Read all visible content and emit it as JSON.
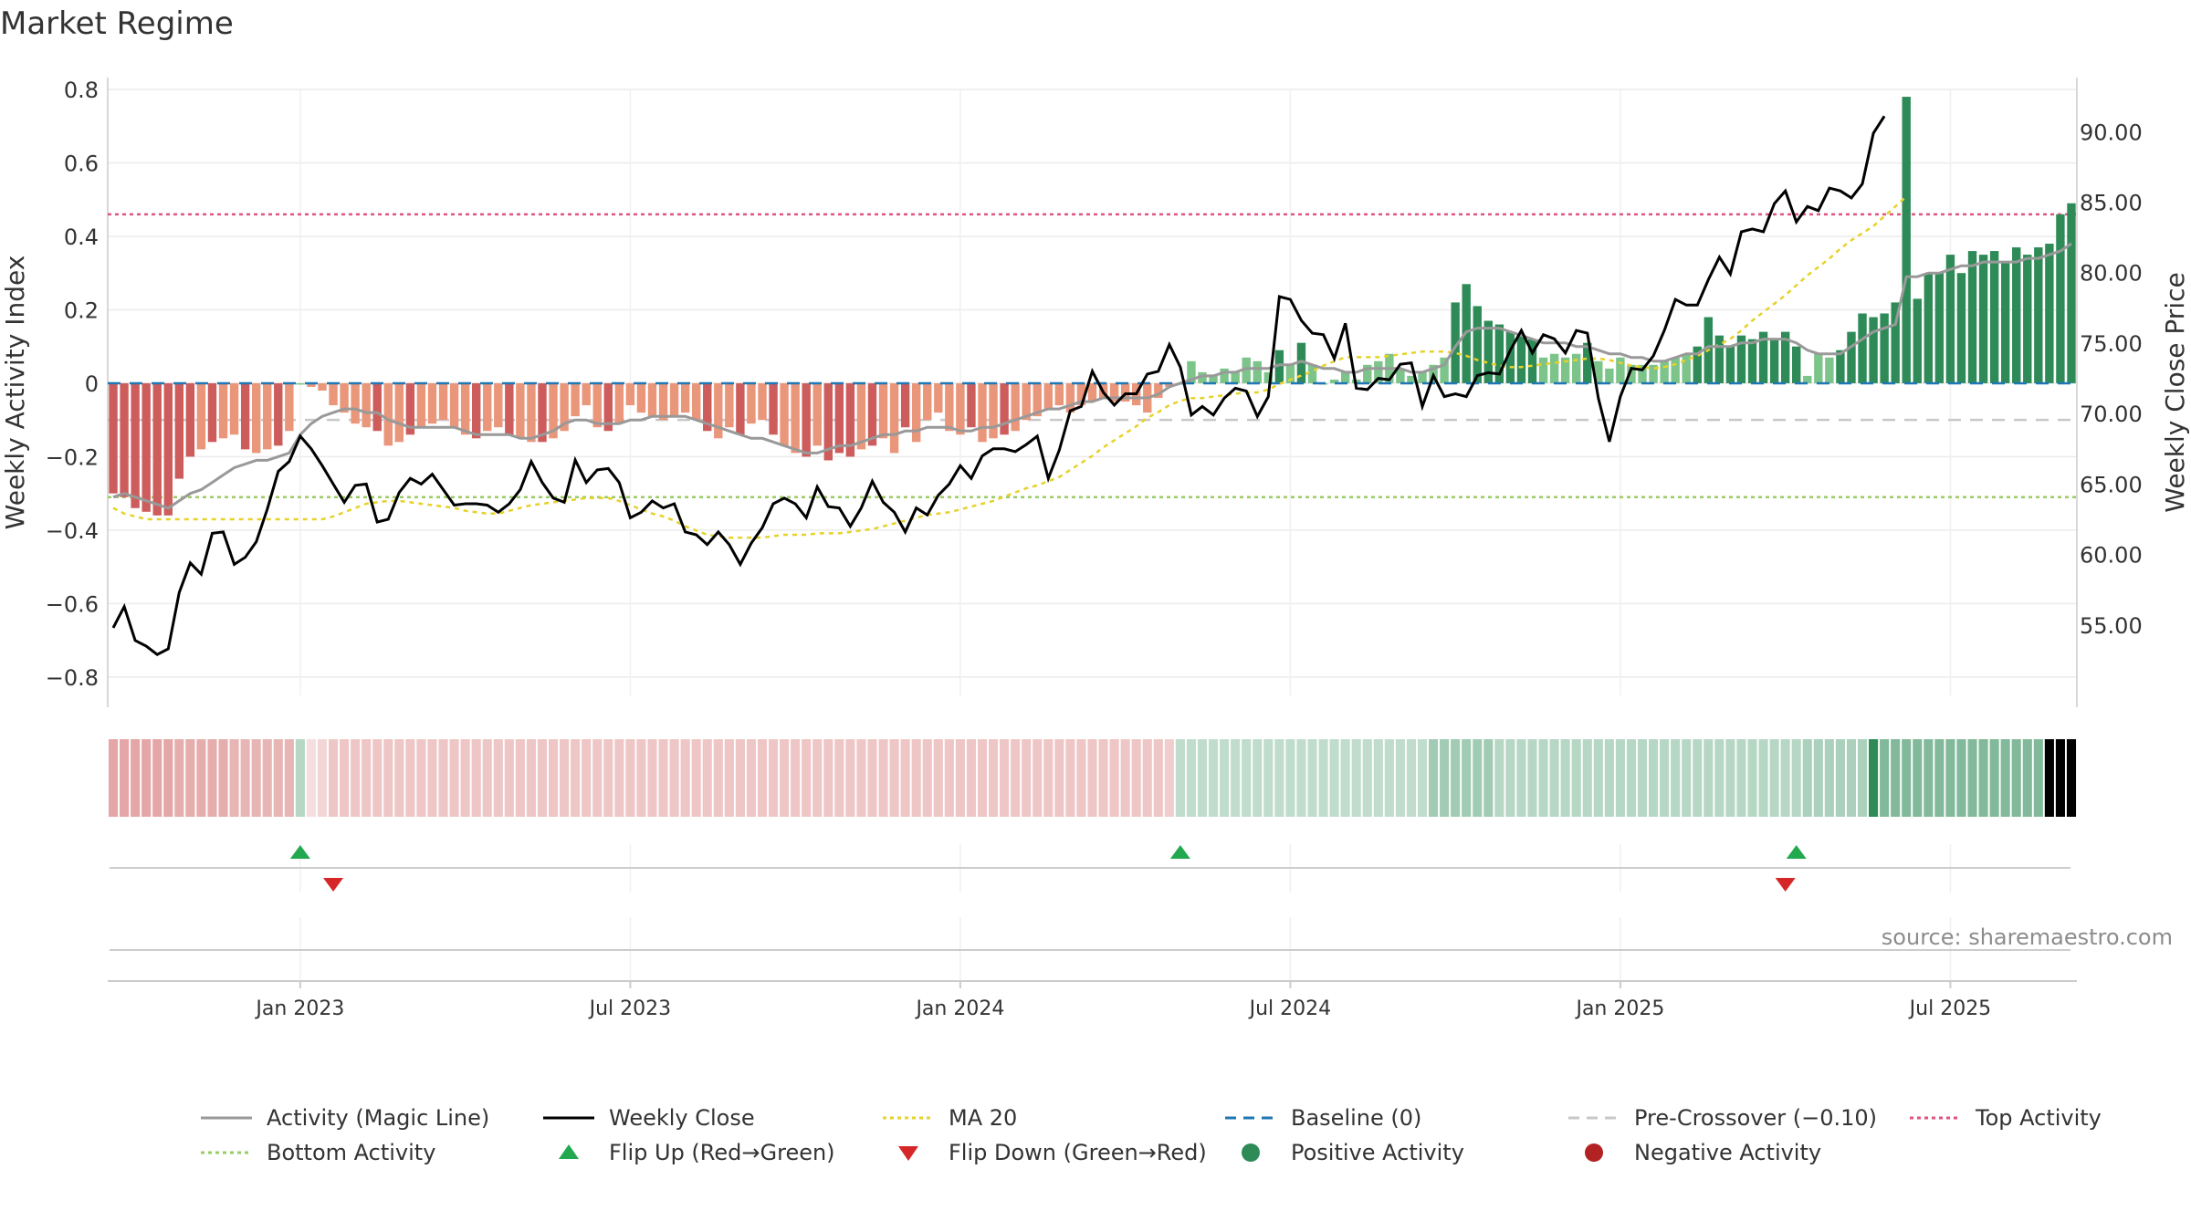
{
  "title": "Market Regime",
  "source": "source: sharemaestro.com",
  "chart_data": {
    "type": "bar",
    "title": "Market Regime",
    "ylabel": "Weekly Activity Index",
    "y2label": "Weekly Close Price",
    "ylim": [
      -0.85,
      0.8
    ],
    "y2lim": [
      50.0,
      93.0
    ],
    "y_ticks": [
      "0.8",
      "0.6",
      "0.4",
      "0.2",
      "0",
      "−0.2",
      "−0.4",
      "−0.6",
      "−0.8"
    ],
    "y2_ticks": [
      "90.00",
      "85.00",
      "80.00",
      "75.00",
      "70.00",
      "65.00",
      "60.00",
      "55.00"
    ],
    "x_ticks": [
      "Jan 2023",
      "Jul 2023",
      "Jan 2024",
      "Jul 2024",
      "Jan 2025",
      "Jul 2025"
    ],
    "x_tick_weeks": [
      17,
      47,
      77,
      107,
      137,
      167
    ],
    "levels": {
      "top_activity": 0.46,
      "bottom_activity": -0.31,
      "baseline": 0.0,
      "pre_crossover": -0.1
    },
    "activity": [
      -0.3,
      -0.31,
      -0.34,
      -0.35,
      -0.36,
      -0.36,
      -0.26,
      -0.2,
      -0.18,
      -0.16,
      -0.15,
      -0.14,
      -0.18,
      -0.19,
      -0.18,
      -0.17,
      -0.13,
      0.0,
      -0.01,
      -0.02,
      -0.06,
      -0.08,
      -0.11,
      -0.12,
      -0.13,
      -0.17,
      -0.16,
      -0.14,
      -0.12,
      -0.11,
      -0.1,
      -0.12,
      -0.14,
      -0.15,
      -0.13,
      -0.12,
      -0.14,
      -0.15,
      -0.16,
      -0.16,
      -0.15,
      -0.13,
      -0.09,
      -0.06,
      -0.12,
      -0.13,
      -0.11,
      -0.06,
      -0.08,
      -0.09,
      -0.1,
      -0.09,
      -0.08,
      -0.1,
      -0.13,
      -0.15,
      -0.12,
      -0.14,
      -0.11,
      -0.1,
      -0.14,
      -0.17,
      -0.19,
      -0.2,
      -0.17,
      -0.21,
      -0.19,
      -0.2,
      -0.18,
      -0.17,
      -0.15,
      -0.19,
      -0.12,
      -0.16,
      -0.1,
      -0.08,
      -0.13,
      -0.14,
      -0.12,
      -0.16,
      -0.15,
      -0.14,
      -0.13,
      -0.1,
      -0.09,
      -0.07,
      -0.06,
      -0.08,
      -0.06,
      -0.05,
      -0.04,
      -0.05,
      -0.05,
      -0.06,
      -0.08,
      -0.04,
      -0.01,
      0.0,
      0.06,
      0.03,
      0.02,
      0.04,
      0.03,
      0.07,
      0.06,
      0.03,
      0.09,
      0.05,
      0.11,
      0.05,
      0.0,
      0.01,
      0.03,
      0.01,
      0.05,
      0.06,
      0.08,
      0.04,
      0.02,
      0.03,
      0.05,
      0.07,
      0.22,
      0.27,
      0.21,
      0.17,
      0.16,
      0.14,
      0.13,
      0.12,
      0.07,
      0.08,
      0.07,
      0.08,
      0.11,
      0.06,
      0.04,
      0.07,
      0.05,
      0.05,
      0.05,
      0.06,
      0.07,
      0.08,
      0.1,
      0.18,
      0.13,
      0.1,
      0.13,
      0.12,
      0.14,
      0.12,
      0.14,
      0.1,
      0.02,
      0.08,
      0.07,
      0.09,
      0.14,
      0.19,
      0.18,
      0.19,
      0.22,
      0.78,
      0.23,
      0.3,
      0.3,
      0.35,
      0.3,
      0.36,
      0.35,
      0.36,
      0.33,
      0.37,
      0.35,
      0.37,
      0.38,
      0.46,
      0.49
    ],
    "magic_line": [
      -0.31,
      -0.3,
      -0.31,
      -0.32,
      -0.33,
      -0.34,
      -0.32,
      -0.3,
      -0.29,
      -0.27,
      -0.25,
      -0.23,
      -0.22,
      -0.21,
      -0.21,
      -0.2,
      -0.19,
      -0.14,
      -0.11,
      -0.09,
      -0.08,
      -0.07,
      -0.07,
      -0.08,
      -0.08,
      -0.1,
      -0.11,
      -0.12,
      -0.12,
      -0.12,
      -0.12,
      -0.12,
      -0.13,
      -0.14,
      -0.14,
      -0.14,
      -0.14,
      -0.15,
      -0.15,
      -0.14,
      -0.13,
      -0.11,
      -0.1,
      -0.1,
      -0.11,
      -0.11,
      -0.11,
      -0.1,
      -0.1,
      -0.09,
      -0.09,
      -0.09,
      -0.09,
      -0.1,
      -0.11,
      -0.12,
      -0.13,
      -0.14,
      -0.15,
      -0.15,
      -0.16,
      -0.17,
      -0.18,
      -0.19,
      -0.19,
      -0.18,
      -0.17,
      -0.17,
      -0.16,
      -0.15,
      -0.14,
      -0.14,
      -0.13,
      -0.13,
      -0.12,
      -0.12,
      -0.12,
      -0.13,
      -0.13,
      -0.12,
      -0.12,
      -0.11,
      -0.1,
      -0.09,
      -0.08,
      -0.07,
      -0.07,
      -0.06,
      -0.05,
      -0.05,
      -0.04,
      -0.04,
      -0.04,
      -0.04,
      -0.04,
      -0.03,
      -0.01,
      0.0,
      0.01,
      0.02,
      0.02,
      0.03,
      0.03,
      0.04,
      0.04,
      0.04,
      0.05,
      0.05,
      0.06,
      0.05,
      0.04,
      0.04,
      0.03,
      0.03,
      0.04,
      0.04,
      0.04,
      0.04,
      0.03,
      0.03,
      0.04,
      0.05,
      0.1,
      0.14,
      0.15,
      0.15,
      0.15,
      0.14,
      0.13,
      0.12,
      0.11,
      0.11,
      0.11,
      0.1,
      0.1,
      0.09,
      0.08,
      0.08,
      0.07,
      0.07,
      0.06,
      0.06,
      0.07,
      0.08,
      0.08,
      0.1,
      0.1,
      0.1,
      0.11,
      0.11,
      0.12,
      0.12,
      0.12,
      0.11,
      0.09,
      0.08,
      0.08,
      0.08,
      0.1,
      0.12,
      0.14,
      0.15,
      0.16,
      0.29,
      0.29,
      0.3,
      0.3,
      0.31,
      0.32,
      0.32,
      0.33,
      0.33,
      0.33,
      0.33,
      0.34,
      0.34,
      0.35,
      0.36,
      0.38
    ],
    "weekly_close": [
      54.8,
      56.3,
      53.9,
      53.5,
      52.9,
      53.3,
      57.3,
      59.4,
      58.6,
      61.5,
      61.6,
      59.3,
      59.8,
      60.9,
      63.2,
      65.9,
      66.6,
      68.4,
      67.5,
      66.3,
      65.0,
      63.7,
      64.9,
      65.0,
      62.3,
      62.5,
      64.4,
      65.4,
      65.0,
      65.7,
      64.6,
      63.5,
      63.6,
      63.6,
      63.5,
      63.0,
      63.6,
      64.6,
      66.6,
      65.1,
      64.0,
      63.7,
      66.7,
      65.1,
      66.0,
      66.1,
      65.1,
      62.6,
      63.0,
      63.8,
      63.3,
      63.6,
      61.6,
      61.4,
      60.7,
      61.6,
      60.7,
      59.3,
      60.8,
      61.9,
      63.6,
      64.0,
      63.6,
      62.6,
      64.8,
      63.4,
      63.3,
      62.0,
      63.3,
      65.2,
      63.7,
      63.0,
      61.6,
      63.3,
      62.8,
      64.2,
      65.0,
      66.3,
      65.4,
      67.0,
      67.5,
      67.5,
      67.3,
      67.8,
      68.4,
      65.4,
      67.4,
      70.2,
      70.5,
      73.0,
      71.5,
      70.6,
      71.4,
      71.4,
      72.8,
      73.0,
      74.9,
      73.3,
      69.9,
      70.5,
      69.9,
      71.1,
      71.8,
      71.6,
      69.8,
      71.2,
      78.3,
      78.1,
      76.6,
      75.7,
      75.6,
      73.9,
      76.4,
      71.8,
      71.7,
      72.5,
      72.4,
      73.5,
      73.6,
      70.5,
      72.7,
      71.2,
      71.4,
      71.2,
      72.7,
      72.9,
      72.8,
      74.5,
      75.9,
      74.3,
      75.6,
      75.3,
      74.3,
      75.9,
      75.7,
      71.1,
      68.0,
      71.2,
      73.2,
      73.1,
      74.1,
      75.9,
      78.1,
      77.7,
      77.7,
      79.5,
      81.1,
      79.9,
      82.9,
      83.1,
      82.9,
      84.9,
      85.8,
      83.6,
      84.7,
      84.4,
      86.0,
      85.8,
      85.3,
      86.3,
      89.9,
      91.1
    ],
    "ma20": [
      63.3,
      62.9,
      62.7,
      62.5,
      62.5,
      62.5,
      62.5,
      62.5,
      62.5,
      62.5,
      62.5,
      62.5,
      62.5,
      62.5,
      62.5,
      62.5,
      62.5,
      62.5,
      62.5,
      62.5,
      62.7,
      63.0,
      63.3,
      63.6,
      63.7,
      63.8,
      63.8,
      63.7,
      63.6,
      63.5,
      63.4,
      63.3,
      63.1,
      63.0,
      62.9,
      62.9,
      63.1,
      63.3,
      63.5,
      63.6,
      63.7,
      63.8,
      63.9,
      64.0,
      64.0,
      64.0,
      63.8,
      63.5,
      63.2,
      62.9,
      62.7,
      62.4,
      62.0,
      61.7,
      61.4,
      61.3,
      61.2,
      61.2,
      61.2,
      61.2,
      61.3,
      61.4,
      61.4,
      61.4,
      61.5,
      61.5,
      61.5,
      61.6,
      61.7,
      61.8,
      62.0,
      62.2,
      62.4,
      62.6,
      62.8,
      62.9,
      63.0,
      63.2,
      63.4,
      63.6,
      63.8,
      64.1,
      64.4,
      64.7,
      64.9,
      65.2,
      65.5,
      66.0,
      66.5,
      67.0,
      67.6,
      68.1,
      68.6,
      69.1,
      69.7,
      70.1,
      70.6,
      70.9,
      71.1,
      71.1,
      71.2,
      71.3,
      71.4,
      71.5,
      71.5,
      71.7,
      72.1,
      72.4,
      72.7,
      73.0,
      73.4,
      73.7,
      74.0,
      74.0,
      74.0,
      74.0,
      74.1,
      74.2,
      74.3,
      74.4,
      74.4,
      74.4,
      74.3,
      74.1,
      73.8,
      73.6,
      73.4,
      73.3,
      73.3,
      73.4,
      73.5,
      73.6,
      73.7,
      73.8,
      73.9,
      73.9,
      73.8,
      73.6,
      73.4,
      73.3,
      73.2,
      73.3,
      73.5,
      73.8,
      74.1,
      74.5,
      74.9,
      75.3,
      75.9,
      76.6,
      77.2,
      77.8,
      78.4,
      79.1,
      79.8,
      80.4,
      81.0,
      81.7,
      82.3,
      82.8,
      83.3,
      84.0,
      84.7,
      85.4
    ],
    "regime_strength": [
      0.55,
      0.55,
      0.55,
      0.55,
      0.55,
      0.55,
      0.5,
      0.5,
      0.5,
      0.5,
      0.5,
      0.45,
      0.45,
      0.45,
      0.45,
      0.45,
      0.45,
      0.35,
      0.2,
      0.25,
      0.35,
      0.35,
      0.35,
      0.35,
      0.35,
      0.35,
      0.35,
      0.35,
      0.35,
      0.35,
      0.35,
      0.35,
      0.35,
      0.35,
      0.35,
      0.35,
      0.35,
      0.35,
      0.35,
      0.35,
      0.35,
      0.35,
      0.35,
      0.35,
      0.35,
      0.35,
      0.35,
      0.35,
      0.35,
      0.35,
      0.35,
      0.35,
      0.35,
      0.35,
      0.35,
      0.35,
      0.35,
      0.35,
      0.35,
      0.35,
      0.35,
      0.35,
      0.35,
      0.35,
      0.35,
      0.35,
      0.35,
      0.35,
      0.35,
      0.35,
      0.35,
      0.35,
      0.35,
      0.35,
      0.35,
      0.35,
      0.35,
      0.35,
      0.35,
      0.35,
      0.35,
      0.35,
      0.35,
      0.35,
      0.35,
      0.35,
      0.35,
      0.35,
      0.35,
      0.35,
      0.35,
      0.35,
      0.35,
      0.35,
      0.35,
      0.35,
      0.3,
      0.3,
      0.3,
      0.3,
      0.3,
      0.3,
      0.3,
      0.3,
      0.3,
      0.3,
      0.3,
      0.3,
      0.3,
      0.3,
      0.3,
      0.3,
      0.3,
      0.3,
      0.3,
      0.3,
      0.3,
      0.3,
      0.3,
      0.3,
      0.45,
      0.45,
      0.45,
      0.45,
      0.45,
      0.45,
      0.35,
      0.35,
      0.35,
      0.35,
      0.35,
      0.35,
      0.35,
      0.35,
      0.35,
      0.35,
      0.35,
      0.35,
      0.35,
      0.35,
      0.35,
      0.35,
      0.35,
      0.35,
      0.35,
      0.35,
      0.35,
      0.35,
      0.35,
      0.35,
      0.35,
      0.35,
      0.35,
      0.35,
      0.4,
      0.4,
      0.4,
      0.4,
      0.4,
      0.4,
      1.0,
      0.6,
      0.6,
      0.6,
      0.6,
      0.6,
      0.6,
      0.6,
      0.6,
      0.6,
      0.6,
      0.6,
      0.6,
      0.6,
      0.6,
      0.6
    ],
    "flip_up_weeks": [
      17,
      97,
      153
    ],
    "flip_down_weeks": [
      20,
      152
    ],
    "colors": {
      "pos_strong": "#2e8b57",
      "pos_light": "#7cc48a",
      "neg_strong": "#cd5c5c",
      "neg_light": "#e9967a",
      "magic_line": "#999999",
      "weekly_close": "#000000",
      "ma20": "#e6d229",
      "baseline": "#1f77b4",
      "pre_crossover": "#c8c8c8",
      "top_activity": "#e0557f",
      "bottom_activity": "#99cc66",
      "flip_up": "#22a94f",
      "flip_down": "#d62728"
    },
    "legend": [
      {
        "label": "Activity (Magic Line)",
        "kind": "line",
        "color": "#999999",
        "dash": ""
      },
      {
        "label": "Weekly Close",
        "kind": "line",
        "color": "#000000",
        "dash": ""
      },
      {
        "label": "MA 20",
        "kind": "line",
        "color": "#e6d229",
        "dash": "4,4"
      },
      {
        "label": "Baseline (0)",
        "kind": "line",
        "color": "#1f77b4",
        "dash": "12,8"
      },
      {
        "label": "Pre-Crossover (−0.10)",
        "kind": "line",
        "color": "#c8c8c8",
        "dash": "12,8"
      },
      {
        "label": "Top Activity",
        "kind": "line",
        "color": "#e0557f",
        "dash": "4,4"
      },
      {
        "label": "Bottom Activity",
        "kind": "line",
        "color": "#99cc66",
        "dash": "4,4"
      },
      {
        "label": "Flip Up (Red→Green)",
        "kind": "tri-up",
        "color": "#22a94f",
        "dash": ""
      },
      {
        "label": "Flip Down (Green→Red)",
        "kind": "tri-down",
        "color": "#d62728",
        "dash": ""
      },
      {
        "label": "Positive Activity",
        "kind": "dot",
        "color": "#2e8b57",
        "dash": ""
      },
      {
        "label": "Negative Activity",
        "kind": "dot",
        "color": "#b22222",
        "dash": ""
      }
    ],
    "legend_placement": "bottom"
  }
}
